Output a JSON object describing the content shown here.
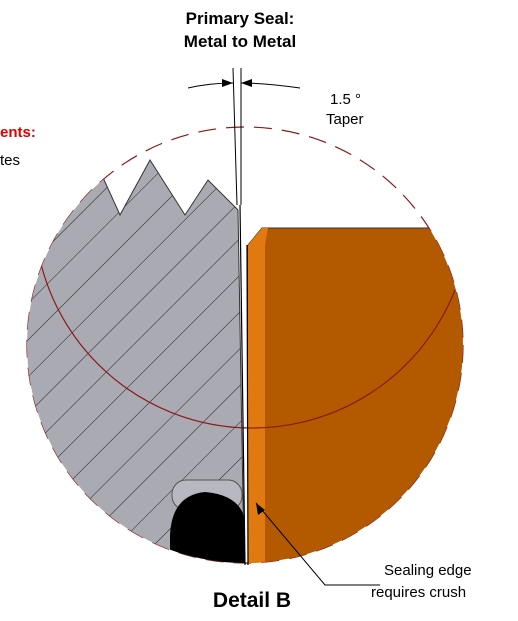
{
  "header": {
    "title_line1": "Primary Seal:",
    "title_line2": "Metal to Metal"
  },
  "taper": {
    "angle": "1.5 °",
    "label": "Taper"
  },
  "cut_labels": {
    "red": "ents:",
    "black": "tes"
  },
  "callout": {
    "line1": "Sealing edge",
    "line2": "requires crush"
  },
  "footer": {
    "title": "Detail B"
  }
}
